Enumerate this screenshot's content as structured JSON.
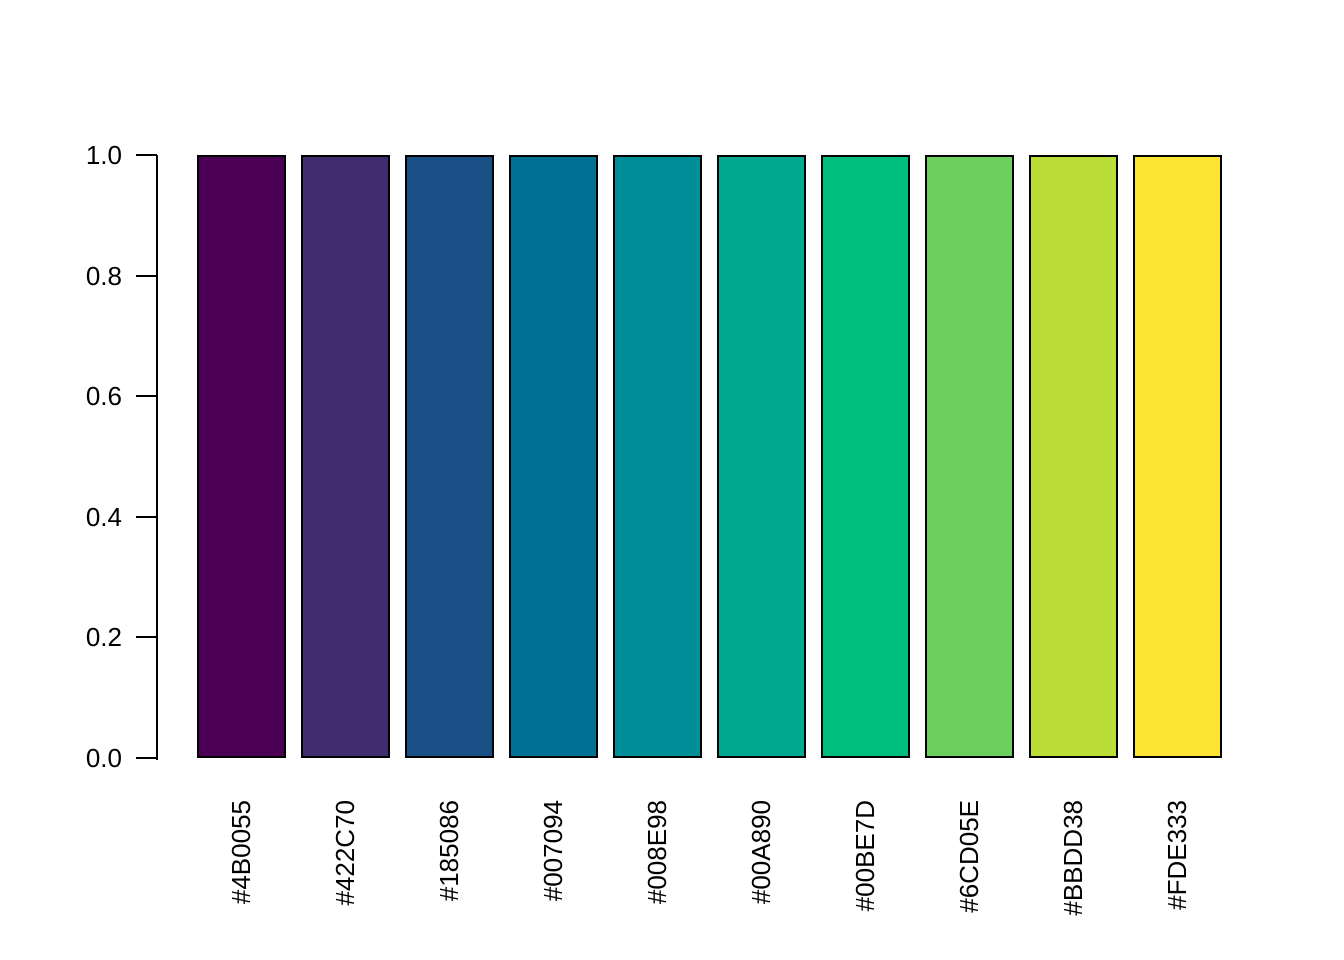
{
  "chart_data": {
    "type": "bar",
    "title": "",
    "xlabel": "",
    "ylabel": "",
    "categories": [
      "#4B0055",
      "#422C70",
      "#185086",
      "#007094",
      "#008E98",
      "#00A890",
      "#00BE7D",
      "#6CD05E",
      "#BBDD38",
      "#FDE333"
    ],
    "values": [
      1.0,
      1.0,
      1.0,
      1.0,
      1.0,
      1.0,
      1.0,
      1.0,
      1.0,
      1.0
    ],
    "bar_colors": [
      "#4B0055",
      "#422C70",
      "#185086",
      "#007094",
      "#008E98",
      "#00A890",
      "#00BE7D",
      "#6CD05E",
      "#BBDD38",
      "#FDE333"
    ],
    "bar_border_color": "#000000",
    "y_ticks": [
      "0.0",
      "0.2",
      "0.4",
      "0.6",
      "0.8",
      "1.0"
    ],
    "ylim": [
      0.0,
      1.0
    ],
    "x_tick_rotation_deg": 90,
    "grid": false,
    "legend": "none",
    "background_color": "#FFFFFF",
    "axis_color": "#000000",
    "text_color": "#000000"
  }
}
